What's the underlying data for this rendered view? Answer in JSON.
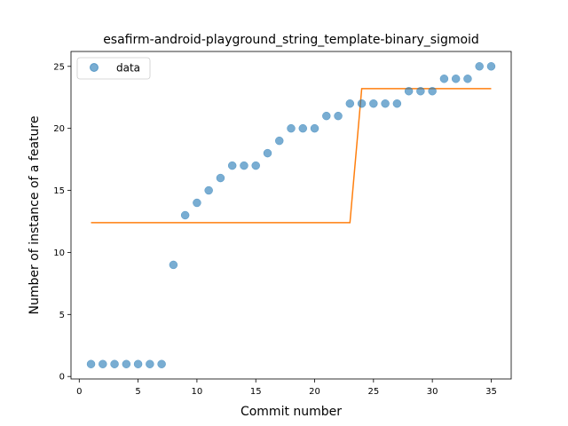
{
  "chart_data": {
    "type": "scatter",
    "title": "esafirm-android-playground_string_template-binary_sigmoid",
    "xlabel": "Commit number",
    "ylabel": "Number of instance of a feature",
    "xlim": [
      -0.7,
      36.7
    ],
    "ylim": [
      -0.2,
      26.2
    ],
    "xticks": [
      0,
      5,
      10,
      15,
      20,
      25,
      30,
      35
    ],
    "yticks": [
      0,
      5,
      10,
      15,
      20,
      25
    ],
    "grid": false,
    "legend_position": "top-left",
    "series": [
      {
        "name": "data",
        "kind": "scatter",
        "color": "#1f77b4",
        "points": [
          [
            1,
            1
          ],
          [
            2,
            1
          ],
          [
            3,
            1
          ],
          [
            4,
            1
          ],
          [
            5,
            1
          ],
          [
            6,
            1
          ],
          [
            7,
            1
          ],
          [
            8,
            9
          ],
          [
            9,
            13
          ],
          [
            10,
            14
          ],
          [
            11,
            15
          ],
          [
            12,
            16
          ],
          [
            13,
            17
          ],
          [
            14,
            17
          ],
          [
            15,
            17
          ],
          [
            16,
            18
          ],
          [
            17,
            19
          ],
          [
            18,
            20
          ],
          [
            19,
            20
          ],
          [
            20,
            20
          ],
          [
            21,
            21
          ],
          [
            22,
            21
          ],
          [
            23,
            22
          ],
          [
            24,
            22
          ],
          [
            25,
            22
          ],
          [
            26,
            22
          ],
          [
            27,
            22
          ],
          [
            28,
            23
          ],
          [
            29,
            23
          ],
          [
            30,
            23
          ],
          [
            31,
            24
          ],
          [
            32,
            24
          ],
          [
            33,
            24
          ],
          [
            34,
            25
          ],
          [
            35,
            25
          ]
        ]
      },
      {
        "kind": "line",
        "color": "#ff7f0e",
        "points": [
          [
            1,
            12.4
          ],
          [
            2,
            12.4
          ],
          [
            3,
            12.4
          ],
          [
            4,
            12.4
          ],
          [
            5,
            12.4
          ],
          [
            6,
            12.4
          ],
          [
            7,
            12.4
          ],
          [
            8,
            12.4
          ],
          [
            9,
            12.4
          ],
          [
            10,
            12.4
          ],
          [
            11,
            12.4
          ],
          [
            12,
            12.4
          ],
          [
            13,
            12.4
          ],
          [
            14,
            12.4
          ],
          [
            15,
            12.4
          ],
          [
            16,
            12.4
          ],
          [
            17,
            12.4
          ],
          [
            18,
            12.4
          ],
          [
            19,
            12.4
          ],
          [
            20,
            12.4
          ],
          [
            21,
            12.4
          ],
          [
            22,
            12.4
          ],
          [
            23,
            12.4
          ],
          [
            24,
            23.2
          ],
          [
            25,
            23.2
          ],
          [
            26,
            23.2
          ],
          [
            27,
            23.2
          ],
          [
            28,
            23.2
          ],
          [
            29,
            23.2
          ],
          [
            30,
            23.2
          ],
          [
            31,
            23.2
          ],
          [
            32,
            23.2
          ],
          [
            33,
            23.2
          ],
          [
            34,
            23.2
          ],
          [
            35,
            23.2
          ]
        ]
      }
    ]
  }
}
